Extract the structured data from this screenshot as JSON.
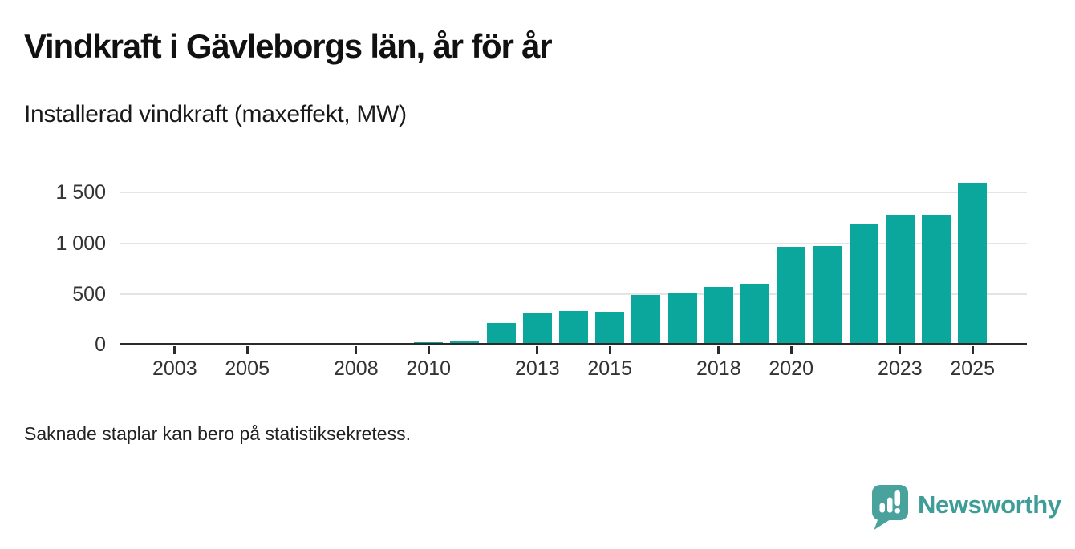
{
  "header": {
    "title": "Vindkraft i Gävleborgs län, år för år",
    "subtitle": "Installerad vindkraft (maxeffekt, MW)"
  },
  "chart_data": {
    "type": "bar",
    "title": "Vindkraft i Gävleborgs län, år för år",
    "subtitle": "Installerad vindkraft (maxeffekt, MW)",
    "ylabel": "Installerad vindkraft (maxeffekt, MW)",
    "xlabel": "",
    "unit": "MW",
    "x": [
      2002,
      2003,
      2004,
      2005,
      2006,
      2007,
      2008,
      2009,
      2010,
      2011,
      2012,
      2013,
      2014,
      2015,
      2016,
      2017,
      2018,
      2019,
      2020,
      2021,
      2022,
      2023,
      2024,
      2025
    ],
    "values": [
      null,
      null,
      null,
      null,
      null,
      null,
      null,
      12,
      20,
      28,
      210,
      308,
      332,
      327,
      488,
      514,
      572,
      602,
      962,
      970,
      1193,
      1283,
      1283,
      1600
    ],
    "x_tick_years": [
      2003,
      2005,
      2008,
      2010,
      2013,
      2015,
      2018,
      2020,
      2023,
      2025
    ],
    "y_ticks": [
      {
        "value": 0,
        "label": "0"
      },
      {
        "value": 500,
        "label": "500"
      },
      {
        "value": 1000,
        "label": "1 000"
      },
      {
        "value": 1500,
        "label": "1 500"
      }
    ],
    "ylim": [
      0,
      1675
    ],
    "grid": true,
    "legend": false,
    "bar_color": "#0ba79c"
  },
  "footnote": "Saknade staplar kan bero på statistiksekretess.",
  "logo": {
    "text": "Newsworthy",
    "icon": "newsworthy-speech-bubble-chart-icon"
  },
  "colors": {
    "bar": "#0ba79c",
    "axis": "#2b2b2b",
    "gridline": "#e4e4e4",
    "axis_label": "#333333",
    "logo": "#3f9d97",
    "background": "#ffffff"
  }
}
